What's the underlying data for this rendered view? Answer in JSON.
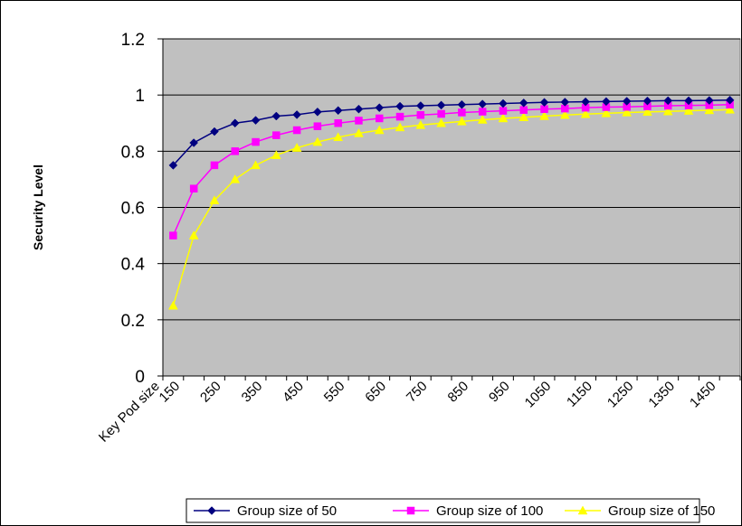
{
  "chart_data": {
    "type": "line",
    "title": "",
    "xlabel": "Key Pod size",
    "ylabel": "Security Level",
    "ylim": [
      0,
      1.2
    ],
    "yticks": [
      "0",
      "0.2",
      "0.4",
      "0.6",
      "0.8",
      "1",
      "1.2"
    ],
    "x": [
      150,
      200,
      250,
      300,
      350,
      400,
      450,
      500,
      550,
      600,
      650,
      700,
      750,
      800,
      850,
      900,
      950,
      1000,
      1050,
      1100,
      1150,
      1200,
      1250,
      1300,
      1350,
      1400,
      1450,
      1500
    ],
    "xtick_labels": [
      "150",
      "250",
      "350",
      "450",
      "550",
      "650",
      "750",
      "850",
      "950",
      "1050",
      "1150",
      "1250",
      "1350",
      "1450"
    ],
    "grid": true,
    "legend_position": "bottom",
    "colors": {
      "plot_background": "#c0c0c0",
      "gridline": "#000000"
    },
    "series": [
      {
        "name": "Group size of 50",
        "color": "#000080",
        "marker": "diamond",
        "values": [
          0.75,
          0.83,
          0.87,
          0.9,
          0.91,
          0.925,
          0.93,
          0.94,
          0.945,
          0.95,
          0.955,
          0.96,
          0.962,
          0.964,
          0.966,
          0.968,
          0.97,
          0.972,
          0.974,
          0.975,
          0.976,
          0.977,
          0.978,
          0.979,
          0.98,
          0.98,
          0.981,
          0.982
        ]
      },
      {
        "name": "Group size of 100",
        "color": "#ff00ff",
        "marker": "square",
        "values": [
          0.5,
          0.667,
          0.75,
          0.8,
          0.833,
          0.857,
          0.875,
          0.889,
          0.9,
          0.909,
          0.917,
          0.923,
          0.929,
          0.933,
          0.938,
          0.941,
          0.944,
          0.947,
          0.95,
          0.952,
          0.955,
          0.957,
          0.958,
          0.96,
          0.962,
          0.963,
          0.964,
          0.966
        ]
      },
      {
        "name": "Group size of 150",
        "color": "#ffff00",
        "marker": "triangle",
        "values": [
          0.25,
          0.5,
          0.625,
          0.7,
          0.75,
          0.786,
          0.812,
          0.833,
          0.85,
          0.864,
          0.875,
          0.885,
          0.893,
          0.9,
          0.906,
          0.912,
          0.917,
          0.921,
          0.925,
          0.929,
          0.932,
          0.935,
          0.938,
          0.94,
          0.942,
          0.944,
          0.946,
          0.948
        ]
      }
    ]
  }
}
